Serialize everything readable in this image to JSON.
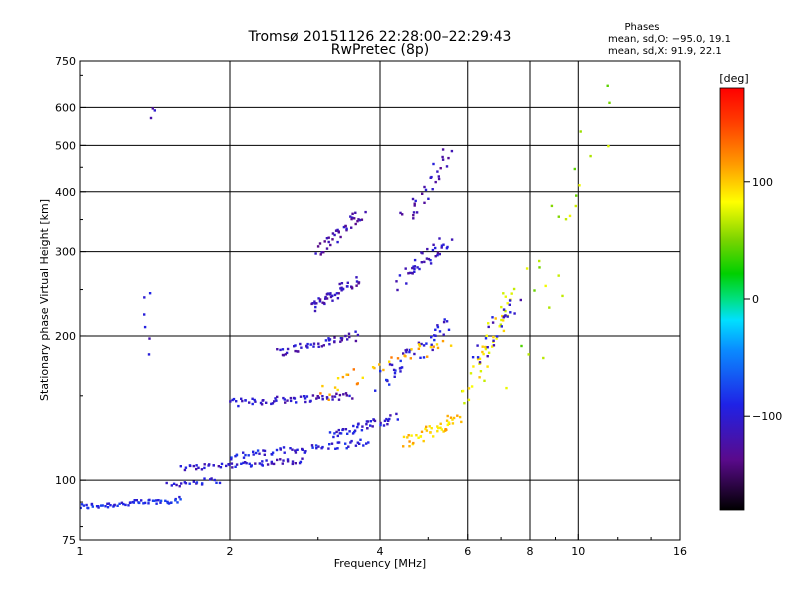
{
  "title_line1": "Tromsø 20151126 22:28:00–22:29:43",
  "title_line2": "RwPretec (8p)",
  "phase_box": {
    "heading": "Phases",
    "line_o": "mean, sd,O: −95.0, 19.1",
    "line_x": "mean, sd,X:  91.9, 22.1"
  },
  "colorbar": {
    "unit_label": "[deg]",
    "min": -180,
    "max": 180,
    "ticks": [
      {
        "value": 100,
        "label": "100"
      },
      {
        "value": 0,
        "label": "0"
      },
      {
        "value": -100,
        "label": "−100"
      }
    ]
  },
  "chart_data": {
    "type": "scatter",
    "xlabel": "Frequency [MHz]",
    "ylabel": "Stationary phase Virtual Height [km]",
    "xscale": "log2",
    "yscale": "log",
    "xlim": [
      1,
      16
    ],
    "ylim": [
      75,
      750
    ],
    "x_ticks": [
      {
        "value": 1,
        "label": "1"
      },
      {
        "value": 2,
        "label": "2"
      },
      {
        "value": 4,
        "label": "4"
      },
      {
        "value": 6,
        "label": "6"
      },
      {
        "value": 8,
        "label": "8"
      },
      {
        "value": 10,
        "label": "10"
      },
      {
        "value": 16,
        "label": "16"
      }
    ],
    "x_gridlines": [
      2,
      4,
      6,
      8,
      10
    ],
    "y_ticks": [
      {
        "value": 75,
        "label": "75"
      },
      {
        "value": 100,
        "label": "100"
      },
      {
        "value": 200,
        "label": "200"
      },
      {
        "value": 300,
        "label": "300"
      },
      {
        "value": 400,
        "label": "400"
      },
      {
        "value": 500,
        "label": "500"
      },
      {
        "value": 600,
        "label": "600"
      },
      {
        "value": 750,
        "label": "750"
      }
    ],
    "y_gridlines": [
      100,
      200,
      300,
      400,
      500,
      600
    ],
    "grid": true,
    "traces": [
      {
        "f": [
          1.0,
          1.6
        ],
        "h": [
          88,
          91
        ],
        "phase": -90,
        "n": 60,
        "spread": 0.02
      },
      {
        "f": [
          1.5,
          1.9
        ],
        "h": [
          98,
          100
        ],
        "phase": -100,
        "n": 20,
        "spread": 0.02
      },
      {
        "f": [
          1.6,
          2.8
        ],
        "h": [
          106,
          110
        ],
        "phase": -105,
        "n": 55,
        "spread": 0.02
      },
      {
        "f": [
          2.0,
          3.8
        ],
        "h": [
          112,
          120
        ],
        "phase": -95,
        "n": 60,
        "spread": 0.025
      },
      {
        "f": [
          2.0,
          3.5
        ],
        "h": [
          145,
          150
        ],
        "phase": -110,
        "n": 60,
        "spread": 0.025
      },
      {
        "f": [
          2.5,
          3.6
        ],
        "h": [
          185,
          200
        ],
        "phase": -110,
        "n": 45,
        "spread": 0.03
      },
      {
        "f": [
          2.9,
          3.6
        ],
        "h": [
          230,
          260
        ],
        "phase": -115,
        "n": 45,
        "spread": 0.04
      },
      {
        "f": [
          3.0,
          3.7
        ],
        "h": [
          300,
          360
        ],
        "phase": -120,
        "n": 40,
        "spread": 0.05
      },
      {
        "f": [
          3.2,
          4.3
        ],
        "h": [
          125,
          135
        ],
        "phase": -100,
        "n": 45,
        "spread": 0.03
      },
      {
        "f": [
          4.0,
          5.5
        ],
        "h": [
          160,
          210
        ],
        "phase": -100,
        "n": 45,
        "spread": 0.06
      },
      {
        "f": [
          4.4,
          5.5
        ],
        "h": [
          260,
          320
        ],
        "phase": -110,
        "n": 40,
        "spread": 0.06
      },
      {
        "f": [
          4.5,
          5.5
        ],
        "h": [
          350,
          480
        ],
        "phase": -115,
        "n": 30,
        "spread": 0.06
      },
      {
        "f": [
          4.5,
          5.8
        ],
        "h": [
          120,
          135
        ],
        "phase": 100,
        "n": 45,
        "spread": 0.04
      },
      {
        "f": [
          6.0,
          7.3
        ],
        "h": [
          150,
          250
        ],
        "phase": 85,
        "n": 45,
        "spread": 0.08
      },
      {
        "f": [
          3.0,
          5.5
        ],
        "h": [
          150,
          200
        ],
        "phase": 110,
        "n": 35,
        "spread": 0.07
      },
      {
        "f": [
          6.3,
          7.5
        ],
        "h": [
          180,
          240
        ],
        "phase": -105,
        "n": 25,
        "spread": 0.06
      },
      {
        "f": [
          7.8,
          11.0
        ],
        "h": [
          170,
          600
        ],
        "phase": 60,
        "n": 25,
        "spread": 0.25
      },
      {
        "f": [
          1.4,
          1.4
        ],
        "h": [
          190,
          240
        ],
        "phase": -110,
        "n": 6,
        "spread": 0.1
      },
      {
        "f": [
          1.4,
          1.4
        ],
        "h": [
          575,
          595
        ],
        "phase": -120,
        "n": 3,
        "spread": 0.02
      }
    ]
  }
}
